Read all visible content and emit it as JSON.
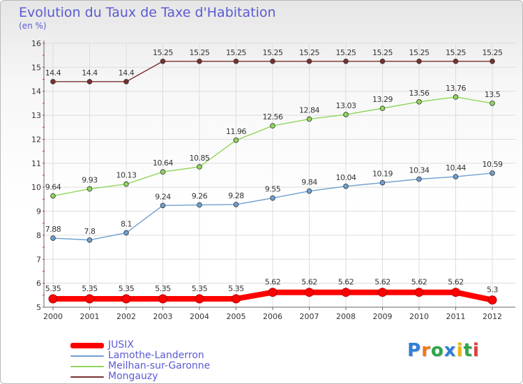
{
  "title": "Evolution du Taux de Taxe d'Habitation",
  "subtitle": "(en %)",
  "logo": {
    "text": "Proxiti",
    "colors": [
      "#2f7fd8",
      "#f07a14",
      "#2fa64a",
      "#2f7fd8",
      "#f0b40f",
      "#2fa64a",
      "#e23b3b"
    ]
  },
  "chart_data": {
    "type": "line",
    "categories": [
      "2000",
      "2001",
      "2002",
      "2003",
      "2004",
      "2005",
      "2006",
      "2007",
      "2008",
      "2009",
      "2010",
      "2011",
      "2012"
    ],
    "y_ticks": [
      "5",
      "6",
      "7",
      "8",
      "9",
      "10",
      "11",
      "12",
      "13",
      "14",
      "15",
      "16"
    ],
    "ylim": [
      5,
      16
    ],
    "grid": true,
    "legend_position": "bottom-left",
    "series": [
      {
        "name": "Mongauzy",
        "color": "#7a3030",
        "values": [
          14.4,
          14.4,
          14.4,
          15.25,
          15.25,
          15.25,
          15.25,
          15.25,
          15.25,
          15.25,
          15.25,
          15.25,
          15.25
        ],
        "labels": [
          "14.4",
          "14.4",
          "14.4",
          "15.25",
          "15.25",
          "15.25",
          "15.25",
          "15.25",
          "15.25",
          "15.25",
          "15.25",
          "15.25",
          "15.25"
        ]
      },
      {
        "name": "Meilhan-sur-Garonne",
        "color": "#8fd65a",
        "values": [
          9.64,
          9.93,
          10.13,
          10.64,
          10.85,
          11.96,
          12.56,
          12.84,
          13.03,
          13.29,
          13.56,
          13.76,
          13.5
        ],
        "labels": [
          "9.64",
          "9.93",
          "10.13",
          "10.64",
          "10.85",
          "11.96",
          "12.56",
          "12.84",
          "13.03",
          "13.29",
          "13.56",
          "13.76",
          "13.5"
        ]
      },
      {
        "name": "Lamothe-Landerron",
        "color": "#6ea0d2",
        "values": [
          7.88,
          7.8,
          8.1,
          9.24,
          9.26,
          9.28,
          9.55,
          9.84,
          10.04,
          10.19,
          10.34,
          10.44,
          10.59
        ],
        "labels": [
          "7.88",
          "7.8",
          "8.1",
          "9.24",
          "9.26",
          "9.28",
          "9.55",
          "9.84",
          "10.04",
          "10.19",
          "10.34",
          "10.44",
          "10.59"
        ]
      },
      {
        "name": "JUSIX",
        "color": "#ff0000",
        "values": [
          5.35,
          5.35,
          5.35,
          5.35,
          5.35,
          5.35,
          5.62,
          5.62,
          5.62,
          5.62,
          5.62,
          5.62,
          5.3
        ],
        "labels": [
          "5.35",
          "5.35",
          "5.35",
          "5.35",
          "5.35",
          "5.35",
          "5.62",
          "5.62",
          "5.62",
          "5.62",
          "5.62",
          "5.62",
          "5.3"
        ]
      }
    ],
    "legend": [
      "JUSIX",
      "Lamothe-Landerron",
      "Meilhan-sur-Garonne",
      "Mongauzy"
    ]
  }
}
